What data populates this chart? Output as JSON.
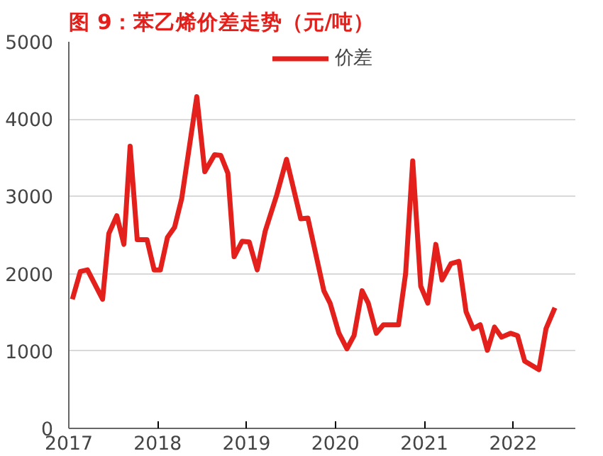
{
  "chart_data": {
    "type": "line",
    "title": "图 9：苯乙烯价差走势（元/吨）",
    "x": [
      2017.04,
      2017.13,
      2017.21,
      2017.38,
      2017.45,
      2017.54,
      2017.62,
      2017.69,
      2017.77,
      2017.88,
      2017.96,
      2018.03,
      2018.11,
      2018.19,
      2018.27,
      2018.44,
      2018.53,
      2018.64,
      2018.71,
      2018.79,
      2018.86,
      2018.95,
      2019.03,
      2019.12,
      2019.21,
      2019.34,
      2019.45,
      2019.61,
      2019.69,
      2019.87,
      2019.94,
      2020.04,
      2020.13,
      2020.21,
      2020.3,
      2020.37,
      2020.46,
      2020.54,
      2020.71,
      2020.79,
      2020.87,
      2020.96,
      2021.04,
      2021.13,
      2021.2,
      2021.3,
      2021.39,
      2021.47,
      2021.55,
      2021.63,
      2021.71,
      2021.79,
      2021.87,
      2021.97,
      2022.05,
      2022.13,
      2022.29,
      2022.37,
      2022.47
    ],
    "series": [
      {
        "name": "价差",
        "color": "#e3201b",
        "values": [
          1670,
          2030,
          2050,
          1670,
          2520,
          2750,
          2380,
          3650,
          2440,
          2440,
          2050,
          2050,
          2470,
          2600,
          2970,
          4290,
          3320,
          3540,
          3530,
          3300,
          2220,
          2420,
          2410,
          2050,
          2550,
          3020,
          3480,
          2710,
          2720,
          1780,
          1620,
          1230,
          1030,
          1200,
          1780,
          1620,
          1230,
          1340,
          1340,
          2000,
          3460,
          1840,
          1620,
          2380,
          1920,
          2130,
          2160,
          1510,
          1290,
          1340,
          1010,
          1310,
          1180,
          1230,
          1200,
          870,
          760,
          1290,
          1560
        ]
      }
    ],
    "xlim": [
      2017,
      2022.7
    ],
    "xticks": [
      2017,
      2018,
      2019,
      2020,
      2021,
      2022
    ],
    "ylim": [
      0,
      5000
    ],
    "yticks": [
      0,
      1000,
      2000,
      3000,
      4000,
      5000
    ],
    "grid": "y",
    "legend": "top",
    "line_style": "solid"
  }
}
